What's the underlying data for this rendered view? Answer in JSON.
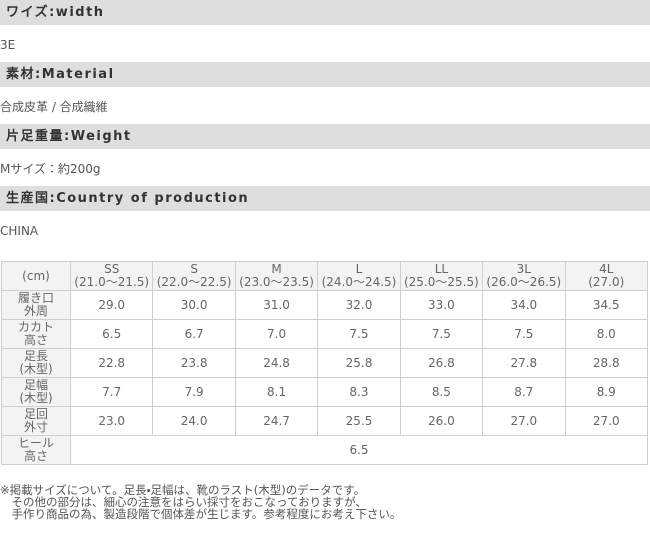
{
  "sections": [
    {
      "title": "ワイズ:width",
      "value": "3E"
    },
    {
      "title": "素材:Material",
      "value": "合成皮革 / 合成織維"
    },
    {
      "title": "片足重量:Weight",
      "value": "Mサイズ：約200g"
    },
    {
      "title": "生産国:Country of production",
      "value": "CHINA"
    }
  ],
  "table": {
    "corner": "(cm)",
    "sizes": [
      {
        "name": "SS",
        "range": "(21.0〜21.5)"
      },
      {
        "name": "S",
        "range": "(22.0〜22.5)"
      },
      {
        "name": "M",
        "range": "(23.0〜23.5)"
      },
      {
        "name": "L",
        "range": "(24.0〜24.5)"
      },
      {
        "name": "LL",
        "range": "(25.0〜25.5)"
      },
      {
        "name": "3L",
        "range": "(26.0〜26.5)"
      },
      {
        "name": "4L",
        "range": "(27.0)"
      }
    ],
    "rows": [
      {
        "label": [
          "履き口",
          "外周"
        ],
        "values": [
          "29.0",
          "30.0",
          "31.0",
          "32.0",
          "33.0",
          "34.0",
          "34.5"
        ]
      },
      {
        "label": [
          "カカト",
          "高さ"
        ],
        "values": [
          "6.5",
          "6.7",
          "7.0",
          "7.5",
          "7.5",
          "7.5",
          "8.0"
        ]
      },
      {
        "label": [
          "足長",
          "(木型)"
        ],
        "values": [
          "22.8",
          "23.8",
          "24.8",
          "25.8",
          "26.8",
          "27.8",
          "28.8"
        ]
      },
      {
        "label": [
          "足幅",
          "(木型)"
        ],
        "values": [
          "7.7",
          "7.9",
          "8.1",
          "8.3",
          "8.5",
          "8.7",
          "8.9"
        ]
      },
      {
        "label": [
          "足回",
          "外寸"
        ],
        "values": [
          "23.0",
          "24.0",
          "24.7",
          "25.5",
          "26.0",
          "27.0",
          "27.0"
        ]
      }
    ],
    "heel": {
      "label": [
        "ヒール",
        "高さ"
      ],
      "value": "6.5"
    }
  },
  "note": [
    "※掲載サイズについて。足長・足幅は、靴のラスト(木型)のデータです。",
    "　その他の部分は、細心の注意をはらい採寸をおこなっておりますが、",
    "　手作り商品の為、製造段階で個体差が生じます。参考程度にお考え下さい。"
  ]
}
